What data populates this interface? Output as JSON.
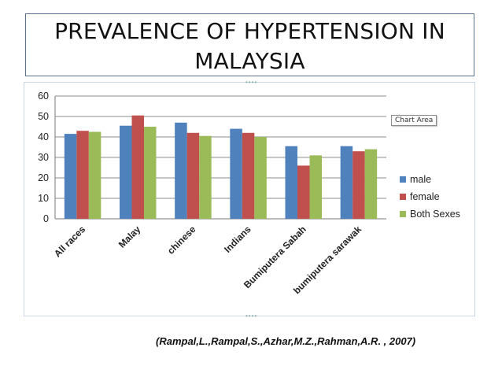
{
  "slide": {
    "title_line1": "PREVALENCE OF HYPERTENSION IN",
    "title_line2": "MALAYSIA",
    "citation": "(Rampal,L.,Rampal,S.,Azhar,M.Z.,Rahman,A.R. , 2007)",
    "tooltip": "Chart Area"
  },
  "chart_data": {
    "type": "bar",
    "categories": [
      "All races",
      "Malay",
      "chinese",
      "Indians",
      "Bumiputera Sabah",
      "bumiputera sarawak"
    ],
    "series": [
      {
        "name": "male",
        "values": [
          41.5,
          45.5,
          47.0,
          44.0,
          35.5,
          35.5
        ],
        "color": "#4f81bd"
      },
      {
        "name": "female",
        "values": [
          43.0,
          50.5,
          42.0,
          42.0,
          26.0,
          33.0
        ],
        "color": "#c0504d"
      },
      {
        "name": "Both Sexes",
        "values": [
          42.5,
          45.0,
          40.5,
          40.0,
          31.0,
          34.0
        ],
        "color": "#9bbb59"
      }
    ],
    "ylim": [
      0,
      60
    ],
    "yticks": [
      0,
      10,
      20,
      30,
      40,
      50,
      60
    ],
    "grid": true,
    "legend": "right",
    "xlabel": "",
    "ylabel": "",
    "title": ""
  }
}
